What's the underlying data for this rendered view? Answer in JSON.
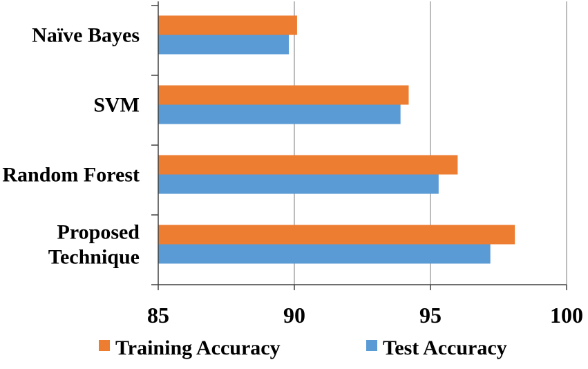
{
  "chart_data": {
    "type": "bar",
    "orientation": "horizontal",
    "categories": [
      [
        "Naïve Bayes"
      ],
      [
        "SVM"
      ],
      [
        "Random Forest"
      ],
      [
        "Proposed",
        "Technique"
      ]
    ],
    "series": [
      {
        "name": "Training Accuracy",
        "color": "#ED7D31",
        "values": [
          90.1,
          94.2,
          96.0,
          98.1
        ]
      },
      {
        "name": "Test Accuracy",
        "color": "#5B9BD5",
        "values": [
          89.8,
          93.9,
          95.3,
          97.2
        ]
      }
    ],
    "xlim": [
      85,
      100
    ],
    "xticks": [
      85,
      90,
      95,
      100
    ],
    "tick_labels": [
      "85",
      "90",
      "95",
      "100"
    ],
    "grid": true,
    "legend_position": "bottom",
    "title": "",
    "xlabel": "",
    "ylabel": ""
  }
}
